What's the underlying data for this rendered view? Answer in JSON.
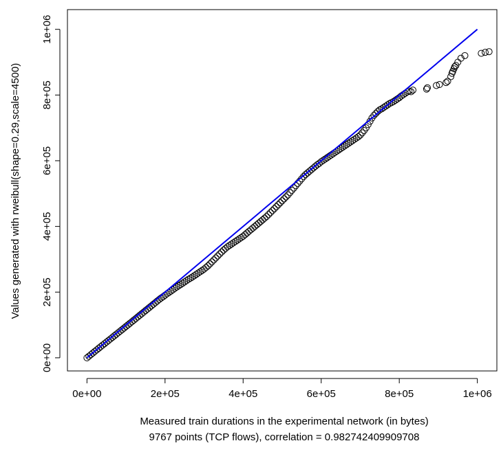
{
  "chart_data": {
    "type": "scatter",
    "xlabel": "Measured train durations in the experimental network (in bytes)",
    "subtitle": "9767 points (TCP flows), correlation =  0.982742409909708",
    "ylabel": "Values generated with rweibull(shape=0.29,scale=4500)",
    "xlim": [
      -50000,
      1050000
    ],
    "ylim": [
      -40000,
      1060000
    ],
    "x_ticks": [
      0,
      200000,
      400000,
      600000,
      800000,
      1000000
    ],
    "x_tick_labels": [
      "0e+00",
      "2e+05",
      "4e+05",
      "6e+05",
      "8e+05",
      "1e+06"
    ],
    "y_ticks": [
      0,
      200000,
      400000,
      600000,
      800000,
      1000000
    ],
    "y_tick_labels": [
      "0e+00",
      "2e+05",
      "4e+05",
      "6e+05",
      "8e+05",
      "1e+06"
    ],
    "reference_line": {
      "x": [
        0,
        1000000
      ],
      "y": [
        0,
        1000000
      ],
      "color": "#0000ee"
    },
    "point_color": "#000000",
    "series": [
      {
        "points": [
          [
            0,
            0
          ],
          [
            5000,
            4800
          ],
          [
            10000,
            9700
          ],
          [
            15000,
            14500
          ],
          [
            20000,
            19300
          ],
          [
            25000,
            24000
          ],
          [
            30000,
            28900
          ],
          [
            35000,
            33700
          ],
          [
            40000,
            38500
          ],
          [
            45000,
            43000
          ],
          [
            50000,
            47800
          ],
          [
            55000,
            52500
          ],
          [
            60000,
            57200
          ],
          [
            65000,
            62000
          ],
          [
            70000,
            66800
          ],
          [
            75000,
            71500
          ],
          [
            80000,
            76300
          ],
          [
            85000,
            81000
          ],
          [
            90000,
            85800
          ],
          [
            95000,
            90600
          ],
          [
            100000,
            95500
          ],
          [
            105000,
            100200
          ],
          [
            110000,
            105000
          ],
          [
            115000,
            109800
          ],
          [
            120000,
            114600
          ],
          [
            125000,
            119500
          ],
          [
            130000,
            124300
          ],
          [
            135000,
            129200
          ],
          [
            140000,
            134000
          ],
          [
            145000,
            138800
          ],
          [
            150000,
            143700
          ],
          [
            155000,
            148500
          ],
          [
            160000,
            153300
          ],
          [
            165000,
            158200
          ],
          [
            170000,
            163000
          ],
          [
            175000,
            167800
          ],
          [
            180000,
            172700
          ],
          [
            185000,
            177500
          ],
          [
            190000,
            182000
          ],
          [
            195000,
            186000
          ],
          [
            200000,
            190500
          ],
          [
            205000,
            195000
          ],
          [
            210000,
            199000
          ],
          [
            215000,
            203000
          ],
          [
            220000,
            207000
          ],
          [
            225000,
            211500
          ],
          [
            230000,
            215500
          ],
          [
            235000,
            219500
          ],
          [
            240000,
            223000
          ],
          [
            245000,
            227000
          ],
          [
            250000,
            231000
          ],
          [
            255000,
            235000
          ],
          [
            260000,
            239000
          ],
          [
            265000,
            242500
          ],
          [
            270000,
            246000
          ],
          [
            275000,
            250000
          ],
          [
            280000,
            254000
          ],
          [
            285000,
            258000
          ],
          [
            290000,
            262000
          ],
          [
            295000,
            266000
          ],
          [
            300000,
            270000
          ],
          [
            305000,
            275000
          ],
          [
            310000,
            280000
          ],
          [
            315000,
            286000
          ],
          [
            320000,
            292000
          ],
          [
            325000,
            298000
          ],
          [
            330000,
            304000
          ],
          [
            335000,
            310000
          ],
          [
            340000,
            316000
          ],
          [
            345000,
            322000
          ],
          [
            350000,
            328000
          ],
          [
            355000,
            333000
          ],
          [
            360000,
            338000
          ],
          [
            365000,
            342000
          ],
          [
            370000,
            346000
          ],
          [
            375000,
            350000
          ],
          [
            380000,
            354000
          ],
          [
            385000,
            358000
          ],
          [
            390000,
            362000
          ],
          [
            395000,
            366000
          ],
          [
            400000,
            370000
          ],
          [
            405000,
            375000
          ],
          [
            410000,
            380000
          ],
          [
            415000,
            385000
          ],
          [
            420000,
            390000
          ],
          [
            425000,
            395000
          ],
          [
            430000,
            400000
          ],
          [
            435000,
            405000
          ],
          [
            440000,
            410000
          ],
          [
            445000,
            415000
          ],
          [
            450000,
            420000
          ],
          [
            455000,
            425000
          ],
          [
            460000,
            430000
          ],
          [
            465000,
            436000
          ],
          [
            470000,
            442000
          ],
          [
            475000,
            448000
          ],
          [
            480000,
            454000
          ],
          [
            485000,
            460000
          ],
          [
            490000,
            466000
          ],
          [
            495000,
            472000
          ],
          [
            500000,
            478000
          ],
          [
            505000,
            484000
          ],
          [
            510000,
            490000
          ],
          [
            515000,
            496000
          ],
          [
            520000,
            503000
          ],
          [
            525000,
            510000
          ],
          [
            530000,
            517000
          ],
          [
            535000,
            524000
          ],
          [
            540000,
            531000
          ],
          [
            545000,
            538000
          ],
          [
            550000,
            545000
          ],
          [
            555000,
            552000
          ],
          [
            560000,
            558000
          ],
          [
            565000,
            563000
          ],
          [
            570000,
            568000
          ],
          [
            575000,
            573000
          ],
          [
            580000,
            578000
          ],
          [
            585000,
            583000
          ],
          [
            590000,
            588000
          ],
          [
            595000,
            592000
          ],
          [
            600000,
            597000
          ],
          [
            605000,
            601000
          ],
          [
            610000,
            605000
          ],
          [
            615000,
            609000
          ],
          [
            620000,
            613000
          ],
          [
            625000,
            617000
          ],
          [
            630000,
            621000
          ],
          [
            635000,
            625000
          ],
          [
            640000,
            629000
          ],
          [
            645000,
            633000
          ],
          [
            650000,
            637000
          ],
          [
            655000,
            641000
          ],
          [
            660000,
            645000
          ],
          [
            665000,
            649000
          ],
          [
            670000,
            653000
          ],
          [
            675000,
            657000
          ],
          [
            680000,
            661000
          ],
          [
            685000,
            665000
          ],
          [
            690000,
            669000
          ],
          [
            695000,
            673000
          ],
          [
            700000,
            678000
          ],
          [
            705000,
            685000
          ],
          [
            710000,
            692000
          ],
          [
            715000,
            700000
          ],
          [
            720000,
            710000
          ],
          [
            725000,
            720000
          ],
          [
            730000,
            730000
          ],
          [
            735000,
            738000
          ],
          [
            740000,
            744000
          ],
          [
            745000,
            750000
          ],
          [
            750000,
            755000
          ],
          [
            755000,
            758000
          ],
          [
            760000,
            762000
          ],
          [
            765000,
            766000
          ],
          [
            770000,
            770000
          ],
          [
            775000,
            774000
          ],
          [
            780000,
            777000
          ],
          [
            785000,
            780000
          ],
          [
            790000,
            784000
          ],
          [
            795000,
            788000
          ],
          [
            800000,
            792000
          ],
          [
            805000,
            797000
          ],
          [
            810000,
            801000
          ],
          [
            815000,
            805000
          ],
          [
            820000,
            809000
          ],
          [
            825000,
            812000
          ],
          [
            830000,
            810000
          ],
          [
            835000,
            815000
          ],
          [
            870000,
            818000
          ],
          [
            872000,
            822000
          ],
          [
            895000,
            829000
          ],
          [
            903000,
            832000
          ],
          [
            920000,
            838000
          ],
          [
            924000,
            842000
          ],
          [
            932000,
            856000
          ],
          [
            935000,
            866000
          ],
          [
            937000,
            872000
          ],
          [
            940000,
            880000
          ],
          [
            942000,
            886000
          ],
          [
            945000,
            890000
          ],
          [
            950000,
            900000
          ],
          [
            958000,
            912000
          ],
          [
            968000,
            920000
          ],
          [
            1010000,
            927000
          ],
          [
            1020000,
            930000
          ],
          [
            1030000,
            932000
          ]
        ]
      }
    ]
  }
}
